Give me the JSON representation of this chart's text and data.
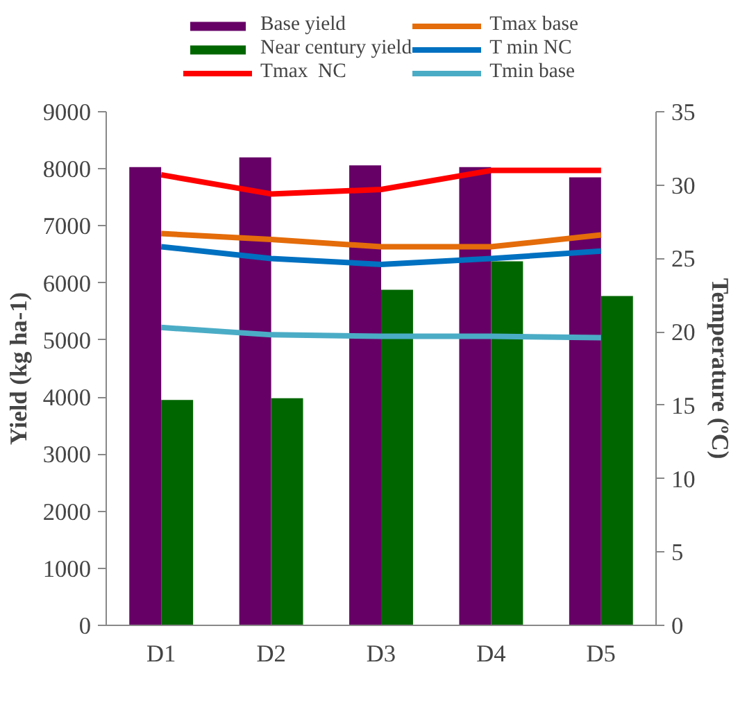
{
  "chart_data": {
    "type": "bar",
    "categories": [
      "D1",
      "D2",
      "D3",
      "D4",
      "D5"
    ],
    "ylabel": "Yield (kg ha-1)",
    "y2label": "Temperature (ºC)",
    "ylim": [
      0,
      9000
    ],
    "yticks": [
      0,
      1000,
      2000,
      3000,
      4000,
      5000,
      6000,
      7000,
      8000,
      9000
    ],
    "y2lim": [
      0,
      35
    ],
    "y2ticks": [
      0,
      5,
      10,
      15,
      20,
      25,
      30,
      35
    ],
    "grid": false,
    "legend": "top",
    "series": [
      {
        "name": "Base yield",
        "color": "#660066",
        "values": [
          8030,
          8200,
          8060,
          8030,
          7850
        ]
      },
      {
        "name": "Near century yield",
        "color": "#006600",
        "values": [
          3950,
          3980,
          5880,
          6380,
          5770
        ]
      },
      {
        "name": "Tmax  NC",
        "type": "line",
        "axis": "y2",
        "color": "#ff0000",
        "values": [
          30.7,
          29.4,
          29.7,
          31.0,
          31.0
        ]
      },
      {
        "name": "Tmax base",
        "type": "line",
        "axis": "y2",
        "color": "#e46c0a",
        "values": [
          26.7,
          26.3,
          25.8,
          25.8,
          26.6
        ]
      },
      {
        "name": "T min NC",
        "type": "line",
        "axis": "y2",
        "color": "#0070c0",
        "values": [
          25.8,
          25.0,
          24.6,
          25.0,
          25.5
        ]
      },
      {
        "name": "Tmin base",
        "type": "line",
        "axis": "y2",
        "color": "#4bacc6",
        "values": [
          20.3,
          19.8,
          19.7,
          19.7,
          19.6
        ]
      }
    ]
  }
}
